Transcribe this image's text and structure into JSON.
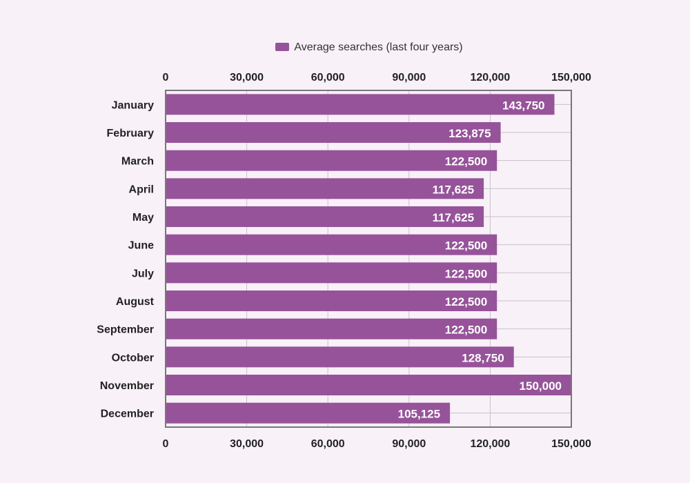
{
  "chart_data": {
    "type": "bar",
    "orientation": "horizontal",
    "categories": [
      "January",
      "February",
      "March",
      "April",
      "May",
      "June",
      "July",
      "August",
      "September",
      "October",
      "November",
      "December"
    ],
    "series": [
      {
        "name": "Average searches (last four years)",
        "values": [
          143750,
          123875,
          122500,
          117625,
          117625,
          122500,
          122500,
          122500,
          122500,
          128750,
          150000,
          105125
        ]
      }
    ],
    "data_labels": [
      "143,750",
      "123,875",
      "122,500",
      "117,625",
      "117,625",
      "122,500",
      "122,500",
      "122,500",
      "122,500",
      "128,750",
      "150,000",
      "105,125"
    ],
    "xlim": [
      0,
      150000
    ],
    "xticks": [
      "0",
      "30,000",
      "60,000",
      "90,000",
      "120,000",
      "150,000"
    ],
    "xtick_values": [
      0,
      30000,
      60000,
      90000,
      120000,
      150000
    ],
    "grid": true,
    "legend_position": "top",
    "bar_color": "#96539a",
    "background": "#f8f1f8"
  }
}
